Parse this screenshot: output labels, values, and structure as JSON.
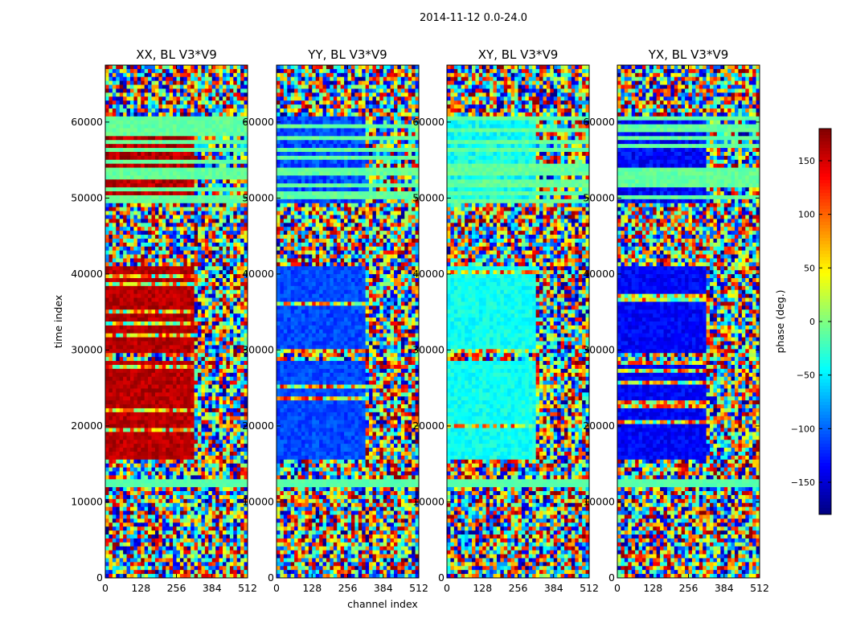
{
  "figure": {
    "suptitle": "2014-11-12 0.0-24.0"
  },
  "chart_data": {
    "type": "heatmap",
    "title": "2014-11-12 0.0-24.0",
    "xlabel": "channel index",
    "ylabel": "time index",
    "xlim": [
      0,
      512
    ],
    "ylim": [
      0,
      67500
    ],
    "x_ticks": [
      "0",
      "128",
      "256",
      "384",
      "512"
    ],
    "y_ticks": [
      "0",
      "10000",
      "20000",
      "30000",
      "40000",
      "50000",
      "60000"
    ],
    "x_tick_values": [
      0,
      128,
      256,
      384,
      512
    ],
    "y_tick_values": [
      0,
      10000,
      20000,
      30000,
      40000,
      50000,
      60000
    ],
    "colormap": "jet",
    "colorbar": {
      "label": "phase (deg.)",
      "range": [
        -180,
        180
      ],
      "ticks": [
        "150",
        "100",
        "50",
        "0",
        "−50",
        "−100",
        "−150"
      ],
      "tick_values": [
        150,
        100,
        50,
        0,
        -50,
        -100,
        -150
      ]
    },
    "panels": [
      {
        "title": "XX, BL V3*V9",
        "dominant_phase_band_deg": 160
      },
      {
        "title": "YY, BL V3*V9",
        "dominant_phase_band_deg": -110
      },
      {
        "title": "XY, BL V3*V9",
        "dominant_phase_band_deg": -40
      },
      {
        "title": "YX, BL V3*V9",
        "dominant_phase_band_deg": -135
      }
    ],
    "time_bands": [
      {
        "from": 0,
        "to": 15500,
        "kind": "noise"
      },
      {
        "from": 12200,
        "to": 13000,
        "kind": "flag"
      },
      {
        "from": 9200,
        "to": 9500,
        "kind": "flag"
      },
      {
        "from": 15500,
        "to": 28500,
        "kind": "coherent"
      },
      {
        "from": 28500,
        "to": 29500,
        "kind": "noise"
      },
      {
        "from": 29500,
        "to": 41000,
        "kind": "coherent"
      },
      {
        "from": 41000,
        "to": 49500,
        "kind": "noise"
      },
      {
        "from": 49500,
        "to": 60500,
        "kind": "flag-stripes"
      },
      {
        "from": 60500,
        "to": 67500,
        "kind": "noise"
      }
    ],
    "grid": false
  }
}
